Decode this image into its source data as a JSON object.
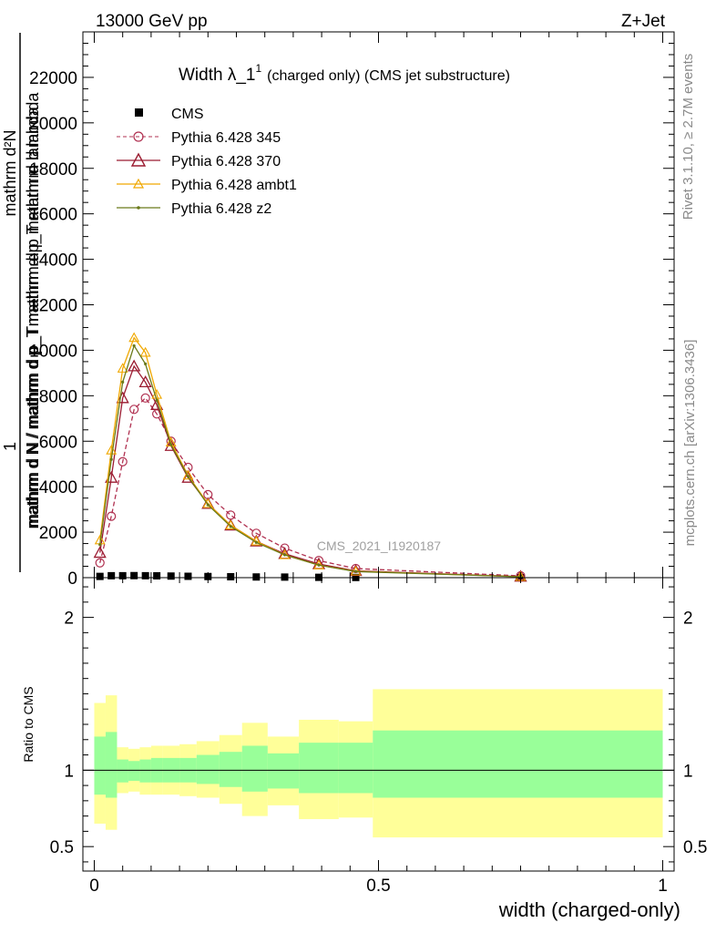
{
  "header": {
    "energy": "13000 GeV pp",
    "process": "Z+Jet"
  },
  "side_text": {
    "rivet": "Rivet 3.1.10, ≥ 2.7M events",
    "site": "mcplots.cern.ch [arXiv:1306.3436]"
  },
  "watermark": "CMS_2021_I1920187",
  "colors": {
    "cms": "#000000",
    "p345": "#b03050",
    "p370": "#9b1b30",
    "ambt1": "#f0a800",
    "z2": "#6b7a1a",
    "band_inner": "#99ff99",
    "band_outer": "#ffff99"
  },
  "chart_data": [
    {
      "type": "line",
      "title": "Width λ_1¹ (charged only) (CMS jet substructure)",
      "title_main": "Width λ_1",
      "title_sup": "1",
      "title_rest": "(charged only) (CMS jet substructure)",
      "ylabel_numerator": "1",
      "ylabel_lines": [
        "mathrm d²N",
        "mathrm d p_T mathrm d lambda",
        "mathrm d N / mathrm d p_T"
      ],
      "ylabel_denominator": "mathrm d N / mathrm d p_T mathrm d p mathrm d lambda",
      "ylim": [
        0,
        24000
      ],
      "yticks": [
        0,
        2000,
        4000,
        6000,
        8000,
        10000,
        12000,
        14000,
        16000,
        18000,
        20000,
        22000
      ],
      "ytick_labels": [
        "0",
        "2000",
        "4000",
        "6000",
        "8000",
        "10000",
        "12000",
        "14000",
        "16000",
        "18000",
        "20000",
        "22000"
      ],
      "xlim": [
        -0.02,
        1.02
      ],
      "legend_position": "top-left",
      "series": [
        {
          "name": "CMS",
          "marker": "square",
          "x": [
            0.01,
            0.03,
            0.05,
            0.07,
            0.09,
            0.11,
            0.135,
            0.165,
            0.2,
            0.24,
            0.285,
            0.335,
            0.395,
            0.46,
            0.75
          ],
          "y": [
            55,
            85,
            85,
            90,
            85,
            80,
            70,
            60,
            50,
            40,
            30,
            25,
            15,
            8,
            2
          ]
        },
        {
          "name": "Pythia 6.428 345",
          "marker": "circle",
          "dashed": true,
          "x": [
            0.01,
            0.03,
            0.05,
            0.07,
            0.09,
            0.11,
            0.135,
            0.165,
            0.2,
            0.24,
            0.285,
            0.335,
            0.395,
            0.46,
            0.75
          ],
          "y": [
            650,
            2700,
            5100,
            7400,
            7900,
            7200,
            6000,
            4850,
            3650,
            2750,
            1950,
            1300,
            750,
            400,
            80
          ]
        },
        {
          "name": "Pythia 6.428 370",
          "marker": "triangle",
          "x": [
            0.01,
            0.03,
            0.05,
            0.07,
            0.09,
            0.11,
            0.135,
            0.165,
            0.2,
            0.24,
            0.285,
            0.335,
            0.395,
            0.46,
            0.75
          ],
          "y": [
            1100,
            4400,
            7900,
            9300,
            8600,
            7600,
            5800,
            4400,
            3250,
            2300,
            1600,
            1050,
            600,
            300,
            50
          ]
        },
        {
          "name": "Pythia 6.428 ambt1",
          "marker": "triangle-small",
          "x": [
            0.01,
            0.03,
            0.05,
            0.07,
            0.09,
            0.11,
            0.135,
            0.165,
            0.2,
            0.24,
            0.285,
            0.335,
            0.395,
            0.46,
            0.75
          ],
          "y": [
            1650,
            5600,
            9200,
            10550,
            9900,
            8050,
            5950,
            4500,
            3250,
            2300,
            1600,
            1000,
            550,
            280,
            40
          ]
        },
        {
          "name": "Pythia 6.428 z2",
          "marker": "dot",
          "x": [
            0.01,
            0.03,
            0.05,
            0.07,
            0.09,
            0.11,
            0.135,
            0.165,
            0.2,
            0.24,
            0.285,
            0.335,
            0.395,
            0.46,
            0.75
          ],
          "y": [
            1450,
            5200,
            8600,
            10200,
            9400,
            7800,
            5850,
            4450,
            3200,
            2250,
            1550,
            1000,
            550,
            270,
            40
          ]
        }
      ]
    },
    {
      "type": "area",
      "ylabel": "Ratio to CMS",
      "xlabel": "width (charged-only)",
      "xlim": [
        -0.02,
        1.02
      ],
      "ylim": [
        0.34,
        2.26
      ],
      "yticks": [
        0.5,
        1,
        2
      ],
      "ytick_labels": [
        "0.5",
        "1",
        "2"
      ],
      "xticks": [
        0,
        0.5,
        1
      ],
      "xtick_labels": [
        "0",
        "0.5",
        "1"
      ],
      "reference_line": 1,
      "bins": [
        {
          "x0": 0.0,
          "x1": 0.02,
          "inner": [
            0.84,
            1.22
          ],
          "outer": [
            0.65,
            1.44
          ]
        },
        {
          "x0": 0.02,
          "x1": 0.04,
          "inner": [
            0.82,
            1.25
          ],
          "outer": [
            0.61,
            1.49
          ]
        },
        {
          "x0": 0.04,
          "x1": 0.06,
          "inner": [
            0.92,
            1.07
          ],
          "outer": [
            0.85,
            1.15
          ]
        },
        {
          "x0": 0.06,
          "x1": 0.08,
          "inner": [
            0.93,
            1.06
          ],
          "outer": [
            0.86,
            1.14
          ]
        },
        {
          "x0": 0.08,
          "x1": 0.1,
          "inner": [
            0.92,
            1.07
          ],
          "outer": [
            0.84,
            1.15
          ]
        },
        {
          "x0": 0.1,
          "x1": 0.12,
          "inner": [
            0.92,
            1.08
          ],
          "outer": [
            0.84,
            1.16
          ]
        },
        {
          "x0": 0.12,
          "x1": 0.15,
          "inner": [
            0.92,
            1.08
          ],
          "outer": [
            0.84,
            1.16
          ]
        },
        {
          "x0": 0.15,
          "x1": 0.18,
          "inner": [
            0.92,
            1.08
          ],
          "outer": [
            0.83,
            1.17
          ]
        },
        {
          "x0": 0.18,
          "x1": 0.22,
          "inner": [
            0.91,
            1.1
          ],
          "outer": [
            0.82,
            1.19
          ]
        },
        {
          "x0": 0.22,
          "x1": 0.26,
          "inner": [
            0.89,
            1.12
          ],
          "outer": [
            0.78,
            1.23
          ]
        },
        {
          "x0": 0.26,
          "x1": 0.305,
          "inner": [
            0.86,
            1.16
          ],
          "outer": [
            0.7,
            1.31
          ]
        },
        {
          "x0": 0.305,
          "x1": 0.36,
          "inner": [
            0.88,
            1.11
          ],
          "outer": [
            0.77,
            1.22
          ]
        },
        {
          "x0": 0.36,
          "x1": 0.43,
          "inner": [
            0.85,
            1.18
          ],
          "outer": [
            0.68,
            1.33
          ]
        },
        {
          "x0": 0.43,
          "x1": 0.49,
          "inner": [
            0.85,
            1.18
          ],
          "outer": [
            0.69,
            1.32
          ]
        },
        {
          "x0": 0.49,
          "x1": 1.0,
          "inner": [
            0.82,
            1.26
          ],
          "outer": [
            0.56,
            1.53
          ]
        }
      ]
    }
  ]
}
